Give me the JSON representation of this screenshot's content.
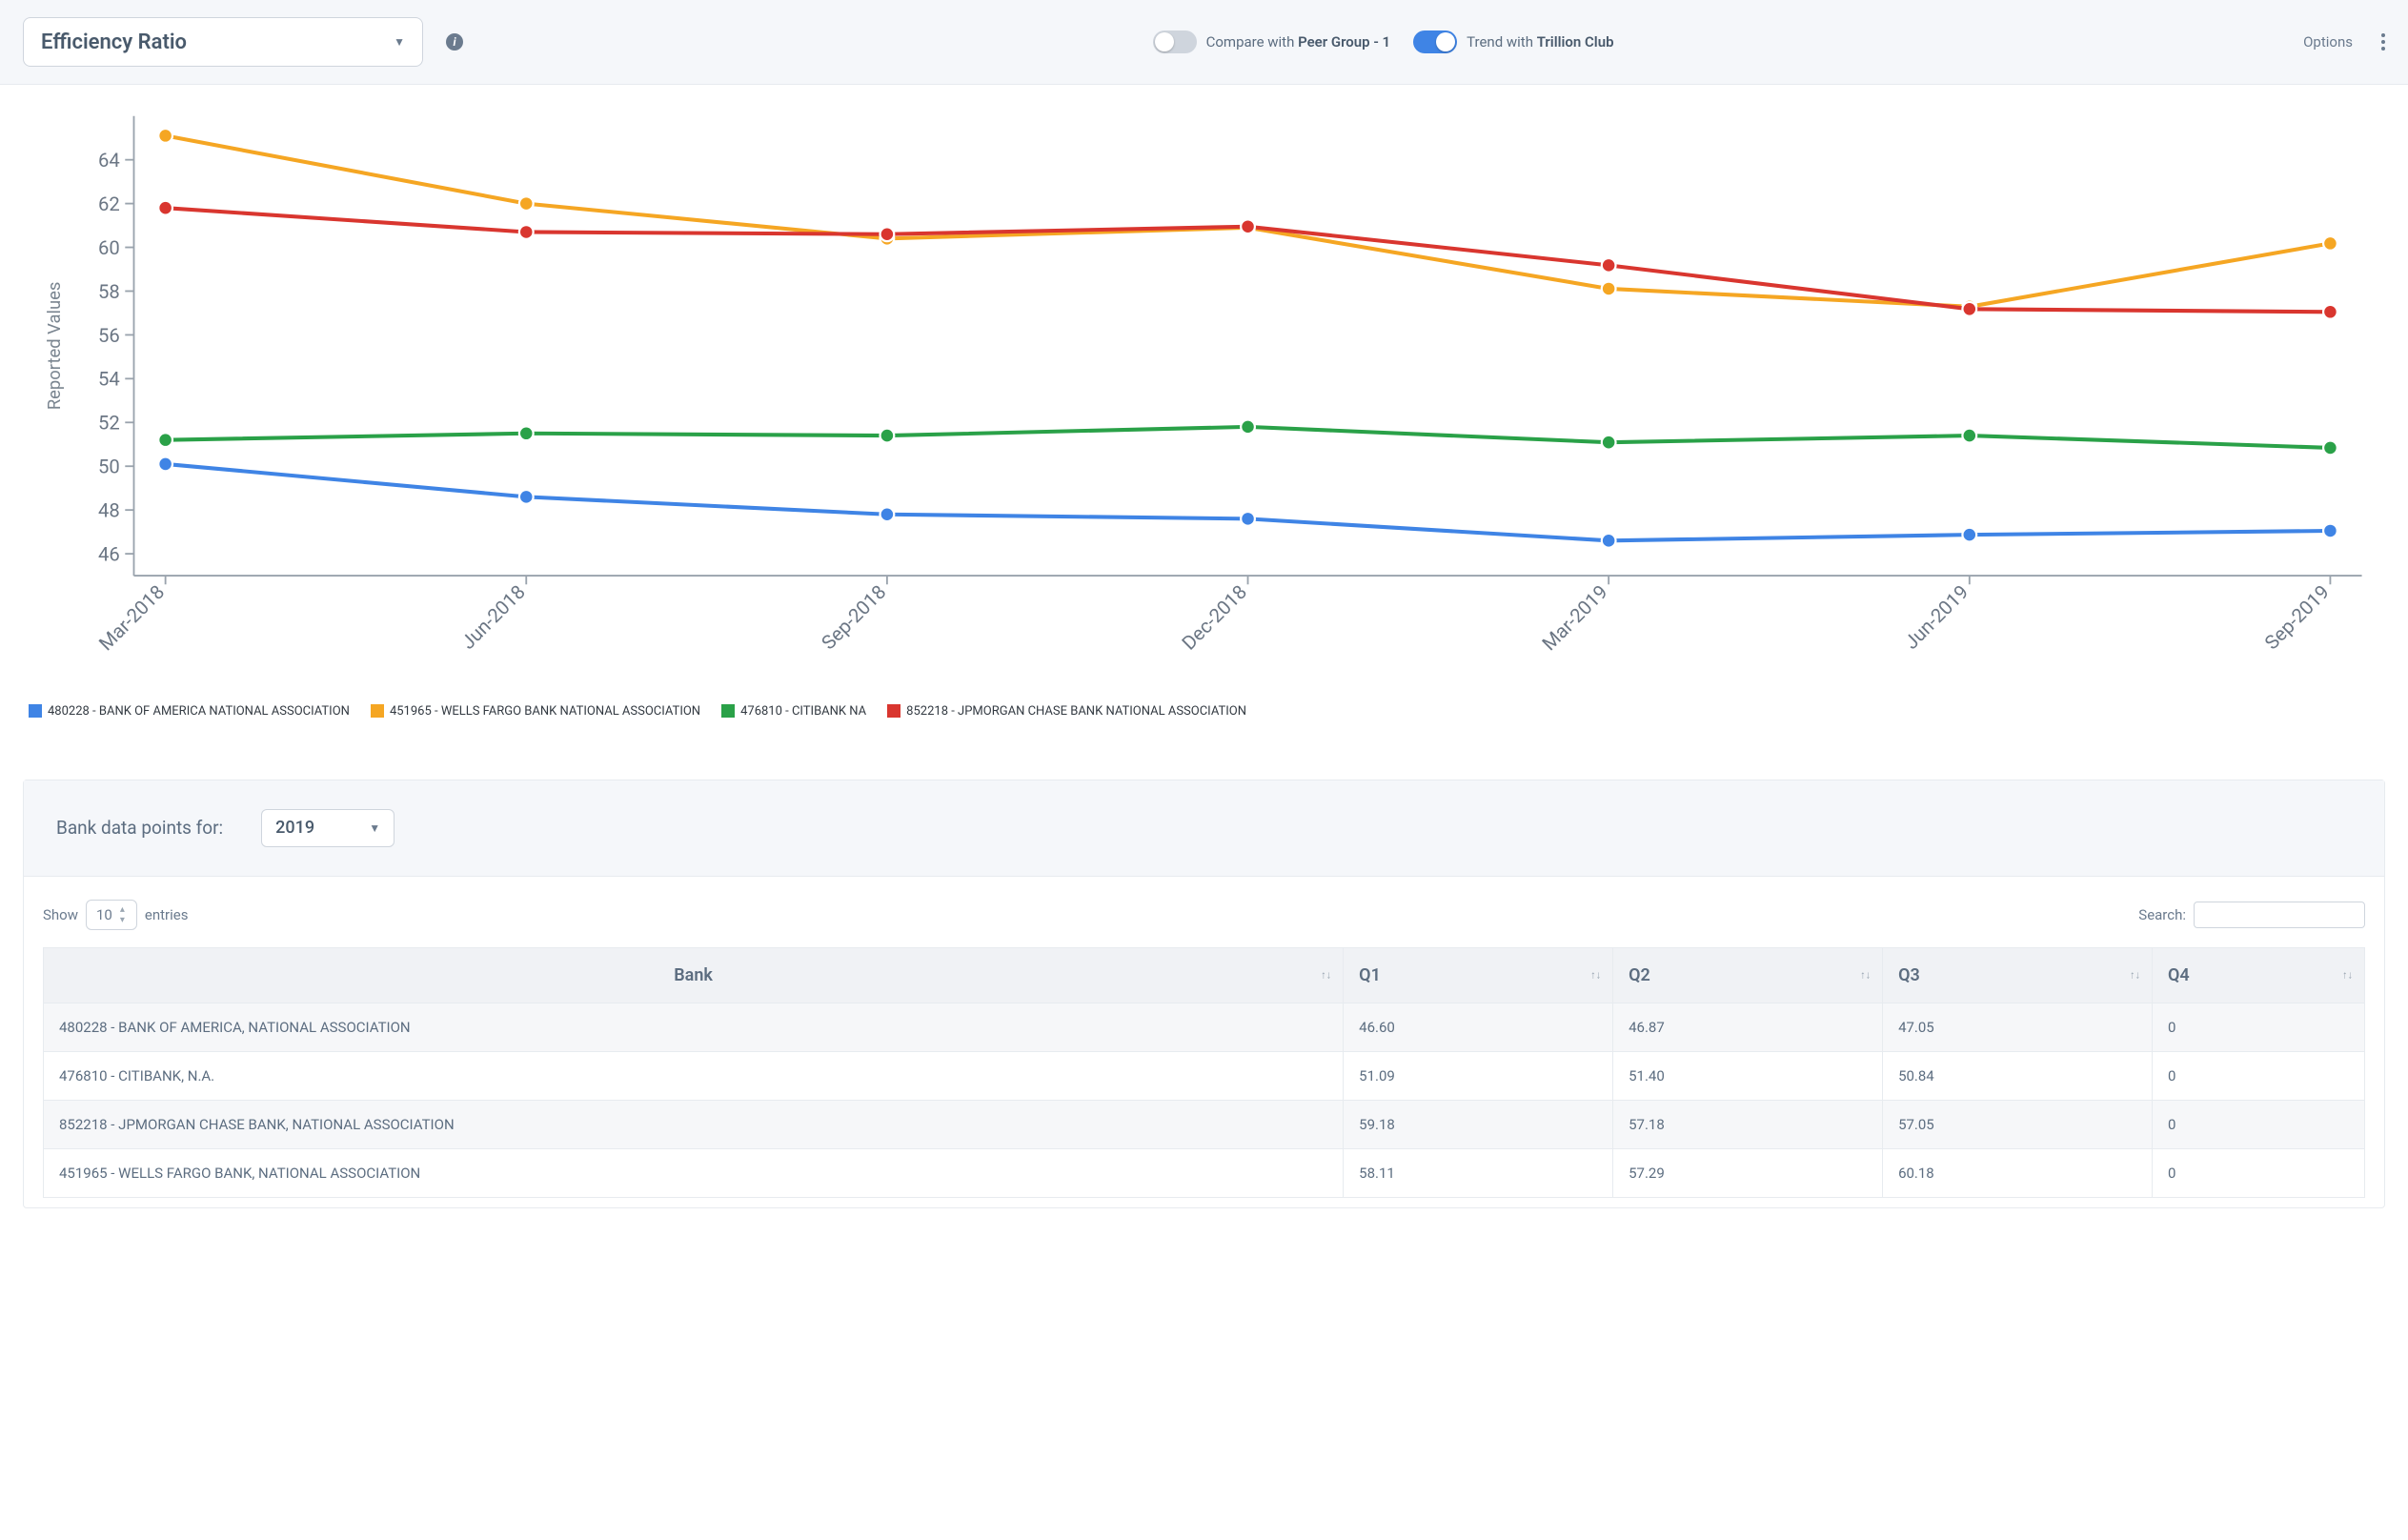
{
  "header": {
    "dropdown_label": "Efficiency Ratio",
    "compare_toggle": {
      "on": false,
      "label_prefix": "Compare with ",
      "label_bold": "Peer Group - 1"
    },
    "trend_toggle": {
      "on": true,
      "label_prefix": "Trend with ",
      "label_bold": "Trillion Club"
    },
    "options_label": "Options"
  },
  "chart": {
    "type": "line",
    "y_axis_title": "Reported Values",
    "ylim": [
      45,
      66
    ],
    "ytick_step": 2,
    "yticks": [
      46,
      48,
      50,
      52,
      54,
      56,
      58,
      60,
      62,
      64
    ],
    "x_categories": [
      "Mar-2018",
      "Jun-2018",
      "Sep-2018",
      "Dec-2018",
      "Mar-2019",
      "Jun-2019",
      "Sep-2019"
    ],
    "label_fontsize": 11,
    "background_color": "#ffffff",
    "grid_color": "#dfe3e8",
    "line_width": 2.2,
    "marker_radius": 4,
    "series": [
      {
        "id": "boa",
        "name": "480228 - BANK OF AMERICA NATIONAL ASSOCIATION",
        "color": "#3f84e5",
        "values": [
          50.1,
          48.6,
          47.8,
          47.6,
          46.6,
          46.87,
          47.05
        ]
      },
      {
        "id": "wfc",
        "name": "451965 - WELLS FARGO BANK NATIONAL ASSOCIATION",
        "color": "#f5a623",
        "values": [
          65.1,
          62.0,
          60.4,
          60.9,
          58.11,
          57.29,
          60.18
        ]
      },
      {
        "id": "citi",
        "name": "476810 - CITIBANK NA",
        "color": "#2aa148",
        "values": [
          51.2,
          51.5,
          51.4,
          51.8,
          51.09,
          51.4,
          50.84
        ]
      },
      {
        "id": "jpm",
        "name": "852218 - JPMORGAN CHASE BANK NATIONAL ASSOCIATION",
        "color": "#d9362f",
        "values": [
          61.8,
          60.7,
          60.6,
          60.95,
          59.18,
          57.18,
          57.05
        ]
      }
    ]
  },
  "data_card": {
    "title": "Bank data points for:",
    "year_select": "2019",
    "show_label": "Show",
    "entries_value": "10",
    "entries_label": "entries",
    "search_label": "Search:",
    "columns": [
      "Bank",
      "Q1",
      "Q2",
      "Q3",
      "Q4"
    ],
    "rows": [
      [
        "480228 - BANK OF AMERICA, NATIONAL ASSOCIATION",
        "46.60",
        "46.87",
        "47.05",
        "0"
      ],
      [
        "476810 - CITIBANK, N.A.",
        "51.09",
        "51.40",
        "50.84",
        "0"
      ],
      [
        "852218 - JPMORGAN CHASE BANK, NATIONAL ASSOCIATION",
        "59.18",
        "57.18",
        "57.05",
        "0"
      ],
      [
        "451965 - WELLS FARGO BANK, NATIONAL ASSOCIATION",
        "58.11",
        "57.29",
        "60.18",
        "0"
      ]
    ]
  }
}
